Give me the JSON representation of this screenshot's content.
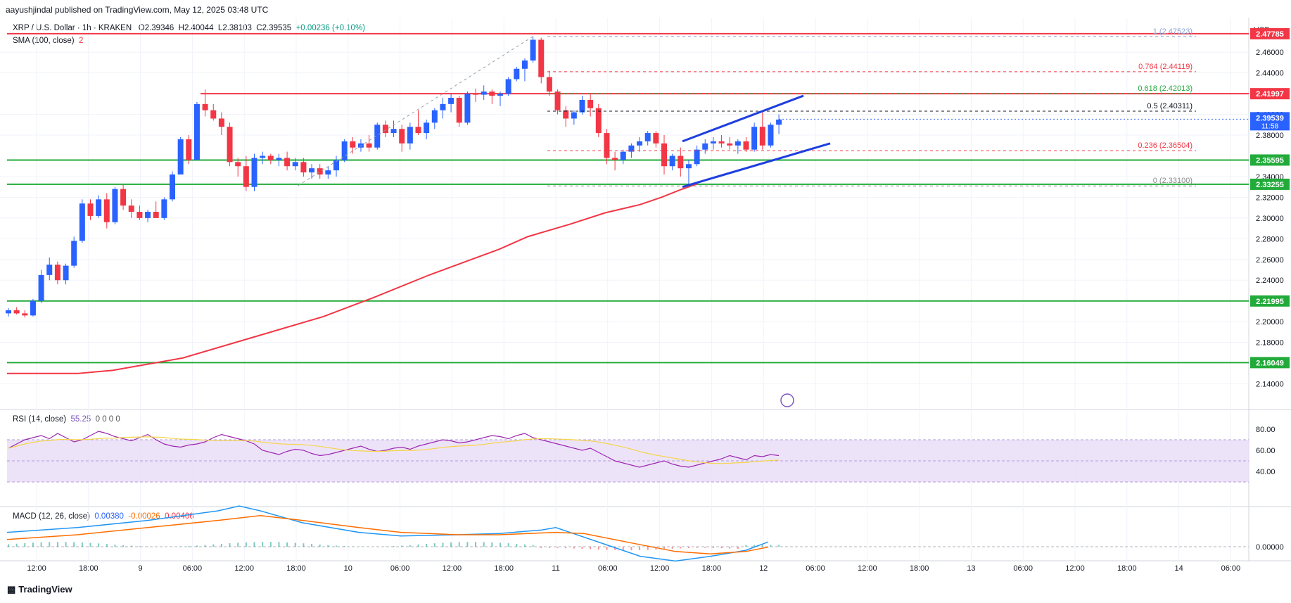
{
  "credit": "aayushjindal published on TradingView.com, May 12, 2025 03:48 UTC",
  "header": {
    "symbol": "XRP / U.S. Dollar · 1h · KRAKEN",
    "open": "O2.39346",
    "high": "H2.40044",
    "low": "L2.38103",
    "close": "C2.39535",
    "change": "+0.00236 (+0.10%)",
    "sma_label": "SMA (100, close)",
    "sma_flag": "2"
  },
  "currency": "USD",
  "brand": "TradingView",
  "colors": {
    "up": "#2962ff",
    "down": "#f23645",
    "sma": "#f23645",
    "support": "#22ab3a",
    "resistance": "#f23645",
    "channel": "#1e3fe0",
    "rsi": "#9c27b0",
    "rsi_band": "#e9dcf7",
    "macd": "#2196f3",
    "signal": "#ff6d00"
  },
  "chart_data": {
    "type": "candlestick",
    "price_axis": {
      "min": 2.12,
      "max": 2.49,
      "ticks": [
        "2.46000",
        "2.44000",
        "2.40000",
        "2.38000",
        "2.34000",
        "2.32000",
        "2.30000",
        "2.28000",
        "2.26000",
        "2.24000",
        "2.20000",
        "2.18000",
        "2.14000"
      ]
    },
    "time_axis": [
      "12:00",
      "18:00",
      "9",
      "06:00",
      "12:00",
      "18:00",
      "10",
      "06:00",
      "12:00",
      "18:00",
      "11",
      "06:00",
      "12:00",
      "18:00",
      "12",
      "06:00",
      "12:00",
      "18:00",
      "13",
      "06:00",
      "12:00",
      "18:00",
      "14",
      "06:00"
    ],
    "candles": [
      [
        2.208,
        2.213,
        2.205,
        2.211
      ],
      [
        2.211,
        2.214,
        2.207,
        2.208
      ],
      [
        2.208,
        2.211,
        2.204,
        2.206
      ],
      [
        2.206,
        2.222,
        2.205,
        2.22
      ],
      [
        2.22,
        2.25,
        2.218,
        2.245
      ],
      [
        2.245,
        2.262,
        2.24,
        2.255
      ],
      [
        2.255,
        2.258,
        2.236,
        2.24
      ],
      [
        2.24,
        2.256,
        2.236,
        2.254
      ],
      [
        2.254,
        2.282,
        2.252,
        2.278
      ],
      [
        2.278,
        2.318,
        2.276,
        2.314
      ],
      [
        2.314,
        2.318,
        2.298,
        2.302
      ],
      [
        2.302,
        2.322,
        2.3,
        2.318
      ],
      [
        2.318,
        2.324,
        2.29,
        2.296
      ],
      [
        2.296,
        2.33,
        2.294,
        2.328
      ],
      [
        2.328,
        2.332,
        2.308,
        2.312
      ],
      [
        2.312,
        2.318,
        2.3,
        2.306
      ],
      [
        2.306,
        2.312,
        2.298,
        2.3
      ],
      [
        2.3,
        2.308,
        2.296,
        2.306
      ],
      [
        2.306,
        2.316,
        2.3,
        2.3
      ],
      [
        2.3,
        2.32,
        2.298,
        2.318
      ],
      [
        2.318,
        2.345,
        2.316,
        2.342
      ],
      [
        2.342,
        2.378,
        2.342,
        2.376
      ],
      [
        2.376,
        2.38,
        2.352,
        2.356
      ],
      [
        2.356,
        2.412,
        2.356,
        2.41
      ],
      [
        2.41,
        2.424,
        2.398,
        2.404
      ],
      [
        2.404,
        2.41,
        2.394,
        2.396
      ],
      [
        2.396,
        2.402,
        2.38,
        2.388
      ],
      [
        2.388,
        2.392,
        2.35,
        2.354
      ],
      [
        2.354,
        2.358,
        2.34,
        2.35
      ],
      [
        2.35,
        2.36,
        2.326,
        2.33
      ],
      [
        2.33,
        2.362,
        2.326,
        2.358
      ],
      [
        2.358,
        2.364,
        2.352,
        2.36
      ],
      [
        2.36,
        2.362,
        2.352,
        2.356
      ],
      [
        2.356,
        2.362,
        2.35,
        2.358
      ],
      [
        2.358,
        2.364,
        2.346,
        2.35
      ],
      [
        2.35,
        2.358,
        2.346,
        2.354
      ],
      [
        2.354,
        2.358,
        2.34,
        2.344
      ],
      [
        2.344,
        2.352,
        2.338,
        2.348
      ],
      [
        2.348,
        2.352,
        2.338,
        2.342
      ],
      [
        2.342,
        2.35,
        2.338,
        2.346
      ],
      [
        2.346,
        2.36,
        2.34,
        2.356
      ],
      [
        2.356,
        2.376,
        2.354,
        2.374
      ],
      [
        2.374,
        2.378,
        2.362,
        2.368
      ],
      [
        2.368,
        2.376,
        2.364,
        2.372
      ],
      [
        2.372,
        2.38,
        2.364,
        2.368
      ],
      [
        2.368,
        2.392,
        2.366,
        2.39
      ],
      [
        2.39,
        2.394,
        2.378,
        2.382
      ],
      [
        2.382,
        2.394,
        2.378,
        2.386
      ],
      [
        2.386,
        2.39,
        2.364,
        2.372
      ],
      [
        2.372,
        2.392,
        2.366,
        2.388
      ],
      [
        2.388,
        2.404,
        2.38,
        2.382
      ],
      [
        2.382,
        2.395,
        2.376,
        2.392
      ],
      [
        2.392,
        2.406,
        2.386,
        2.404
      ],
      [
        2.404,
        2.416,
        2.396,
        2.41
      ],
      [
        2.41,
        2.42,
        2.402,
        2.416
      ],
      [
        2.416,
        2.418,
        2.388,
        2.392
      ],
      [
        2.392,
        2.422,
        2.39,
        2.42
      ],
      [
        2.42,
        2.425,
        2.412,
        2.419
      ],
      [
        2.419,
        2.428,
        2.414,
        2.422
      ],
      [
        2.422,
        2.424,
        2.41,
        2.418
      ],
      [
        2.418,
        2.422,
        2.408,
        2.42
      ],
      [
        2.42,
        2.436,
        2.418,
        2.434
      ],
      [
        2.434,
        2.446,
        2.432,
        2.444
      ],
      [
        2.444,
        2.454,
        2.432,
        2.452
      ],
      [
        2.452,
        2.475,
        2.45,
        2.472
      ],
      [
        2.472,
        2.474,
        2.43,
        2.436
      ],
      [
        2.436,
        2.442,
        2.418,
        2.422
      ],
      [
        2.422,
        2.424,
        2.4,
        2.404
      ],
      [
        2.404,
        2.408,
        2.388,
        2.396
      ],
      [
        2.396,
        2.404,
        2.39,
        2.402
      ],
      [
        2.402,
        2.418,
        2.4,
        2.414
      ],
      [
        2.414,
        2.42,
        2.398,
        2.406
      ],
      [
        2.406,
        2.41,
        2.378,
        2.382
      ],
      [
        2.382,
        2.386,
        2.352,
        2.358
      ],
      [
        2.358,
        2.364,
        2.346,
        2.356
      ],
      [
        2.356,
        2.366,
        2.352,
        2.364
      ],
      [
        2.364,
        2.372,
        2.358,
        2.37
      ],
      [
        2.37,
        2.378,
        2.364,
        2.374
      ],
      [
        2.374,
        2.384,
        2.37,
        2.382
      ],
      [
        2.382,
        2.384,
        2.368,
        2.372
      ],
      [
        2.372,
        2.38,
        2.342,
        2.35
      ],
      [
        2.35,
        2.362,
        2.346,
        2.36
      ],
      [
        2.36,
        2.368,
        2.34,
        2.348
      ],
      [
        2.348,
        2.356,
        2.332,
        2.352
      ],
      [
        2.352,
        2.37,
        2.35,
        2.366
      ],
      [
        2.366,
        2.376,
        2.362,
        2.372
      ],
      [
        2.372,
        2.378,
        2.366,
        2.374
      ],
      [
        2.374,
        2.38,
        2.368,
        2.372
      ],
      [
        2.372,
        2.378,
        2.366,
        2.37
      ],
      [
        2.37,
        2.376,
        2.362,
        2.374
      ],
      [
        2.374,
        2.378,
        2.364,
        2.366
      ],
      [
        2.366,
        2.392,
        2.364,
        2.388
      ],
      [
        2.388,
        2.402,
        2.366,
        2.37
      ],
      [
        2.37,
        2.392,
        2.368,
        2.39
      ],
      [
        2.39,
        2.4,
        2.381,
        2.395
      ]
    ],
    "sma100": [
      [
        0,
        2.15
      ],
      [
        100,
        2.15
      ],
      [
        150,
        2.153
      ],
      [
        250,
        2.165
      ],
      [
        350,
        2.185
      ],
      [
        450,
        2.205
      ],
      [
        520,
        2.223
      ],
      [
        600,
        2.245
      ],
      [
        700,
        2.27
      ],
      [
        740,
        2.282
      ],
      [
        800,
        2.294
      ],
      [
        850,
        2.305
      ],
      [
        900,
        2.313
      ],
      [
        930,
        2.32
      ],
      [
        960,
        2.328
      ],
      [
        981,
        2.333
      ]
    ],
    "horizontal_levels": [
      {
        "price": 2.47785,
        "label": "2.47785",
        "color": "red"
      },
      {
        "price": 2.41997,
        "label": "2.41997",
        "color": "red"
      },
      {
        "price": 2.35595,
        "label": "2.35595",
        "color": "green"
      },
      {
        "price": 2.33255,
        "label": "2.33255",
        "color": "green"
      },
      {
        "price": 2.21995,
        "label": "2.21995",
        "color": "green"
      },
      {
        "price": 2.16049,
        "label": "2.16049",
        "color": "green"
      }
    ],
    "current_price": {
      "price": "2.39539",
      "countdown": "11:58"
    },
    "fibonacci": {
      "high": 2.47523,
      "low": 2.331,
      "levels": [
        {
          "ratio": "1",
          "price": 2.47523,
          "label": "1 (2.47523)",
          "color": "#8aa4d6"
        },
        {
          "ratio": "0.764",
          "price": 2.44119,
          "label": "0.764 (2.44119)",
          "color": "#f23645"
        },
        {
          "ratio": "0.618",
          "price": 2.42013,
          "label": "0.618 (2.42013)",
          "color": "#22ab3a"
        },
        {
          "ratio": "0.5",
          "price": 2.40311,
          "label": "0.5 (2.40311)",
          "color": "#131722"
        },
        {
          "ratio": "0.236",
          "price": 2.36504,
          "label": "0.236 (2.36504)",
          "color": "#f23645"
        },
        {
          "ratio": "0",
          "price": 2.331,
          "label": "0 (2.33100)",
          "color": "#8a8a8a"
        }
      ]
    },
    "rsi": {
      "label": "RSI (14, close)",
      "value": "55.25",
      "extra": "0 0 0 0",
      "ticks": [
        "80.00",
        "60.00",
        "40.00"
      ],
      "upper": 70,
      "lower": 30,
      "values": [
        62,
        66,
        70,
        72,
        74,
        71,
        76,
        72,
        68,
        70,
        74,
        78,
        76,
        73,
        71,
        69,
        72,
        75,
        70,
        66,
        64,
        63,
        65,
        66,
        68,
        72,
        75,
        73,
        71,
        69,
        66,
        60,
        58,
        56,
        59,
        61,
        60,
        57,
        55,
        56,
        58,
        60,
        62,
        64,
        61,
        59,
        60,
        62,
        63,
        61,
        64,
        66,
        68,
        70,
        69,
        67,
        68,
        70,
        72,
        74,
        73,
        71,
        74,
        76,
        72,
        70,
        68,
        66,
        64,
        62,
        60,
        62,
        58,
        54,
        50,
        48,
        46,
        44,
        46,
        48,
        50,
        47,
        45,
        44,
        46,
        48,
        50,
        52,
        55,
        53,
        51,
        55,
        54,
        56,
        55
      ]
    },
    "macd": {
      "label": "MACD (12, 26, close)",
      "macd_value": "0.00380",
      "signal_value": "-0.00026",
      "hist_value": "0.00406",
      "tick": "0.00000",
      "macd": [
        [
          0,
          0.012
        ],
        [
          100,
          0.016
        ],
        [
          200,
          0.022
        ],
        [
          300,
          0.03
        ],
        [
          330,
          0.034
        ],
        [
          360,
          0.03
        ],
        [
          420,
          0.02
        ],
        [
          500,
          0.012
        ],
        [
          560,
          0.009
        ],
        [
          640,
          0.01
        ],
        [
          700,
          0.011
        ],
        [
          760,
          0.014
        ],
        [
          780,
          0.016
        ],
        [
          800,
          0.012
        ],
        [
          860,
          0.0
        ],
        [
          900,
          -0.008
        ],
        [
          950,
          -0.012
        ],
        [
          1000,
          -0.008
        ],
        [
          1050,
          -0.003
        ],
        [
          1082,
          0.004
        ]
      ],
      "signal": [
        [
          0,
          0.006
        ],
        [
          100,
          0.01
        ],
        [
          200,
          0.016
        ],
        [
          300,
          0.022
        ],
        [
          360,
          0.026
        ],
        [
          420,
          0.022
        ],
        [
          500,
          0.016
        ],
        [
          560,
          0.012
        ],
        [
          640,
          0.01
        ],
        [
          700,
          0.01
        ],
        [
          780,
          0.012
        ],
        [
          820,
          0.011
        ],
        [
          880,
          0.004
        ],
        [
          950,
          -0.004
        ],
        [
          1000,
          -0.006
        ],
        [
          1050,
          -0.004
        ],
        [
          1082,
          -0.0003
        ]
      ]
    }
  }
}
